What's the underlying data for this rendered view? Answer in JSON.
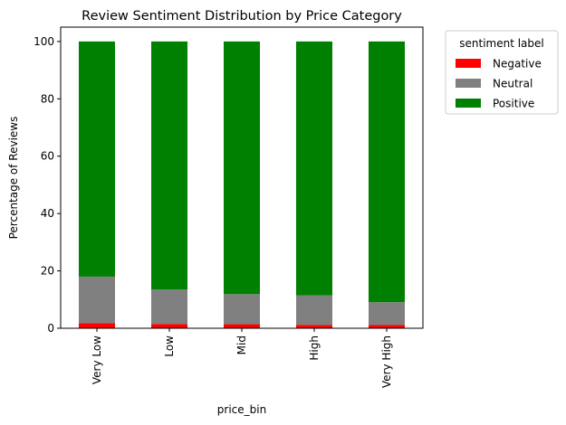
{
  "chart_data": {
    "type": "bar",
    "stacked": true,
    "title": "Review Sentiment Distribution by Price Category",
    "xlabel": "price_bin",
    "ylabel": "Percentage of Reviews",
    "ylim": [
      0,
      105
    ],
    "yticks": [
      0,
      20,
      40,
      60,
      80,
      100
    ],
    "categories": [
      "Very Low",
      "Low",
      "Mid",
      "High",
      "Very High"
    ],
    "series": [
      {
        "name": "Negative",
        "color": "#ff0000",
        "values": [
          1.8,
          1.5,
          1.4,
          1.2,
          1.1
        ]
      },
      {
        "name": "Neutral",
        "color": "#808080",
        "values": [
          16.2,
          12.0,
          10.5,
          10.3,
          8.0
        ]
      },
      {
        "name": "Positive",
        "color": "#008000",
        "values": [
          82.0,
          86.5,
          88.1,
          88.5,
          90.9
        ]
      }
    ],
    "legend": {
      "title": "sentiment label",
      "placement": "outside-top-right"
    },
    "grid": false
  }
}
